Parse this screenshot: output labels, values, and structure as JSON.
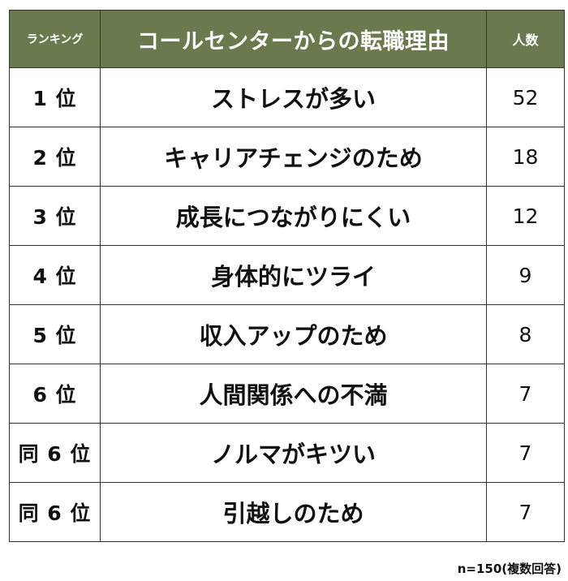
{
  "table": {
    "headers": {
      "rank": "ランキング",
      "reason": "コールセンターからの転職理由",
      "count": "人数"
    },
    "rows": [
      {
        "rank": "1 位",
        "reason": "ストレスが多い",
        "count": "52"
      },
      {
        "rank": "2 位",
        "reason": "キャリアチェンジのため",
        "count": "18"
      },
      {
        "rank": "3 位",
        "reason": "成長につながりにくい",
        "count": "12"
      },
      {
        "rank": "4 位",
        "reason": "身体的にツライ",
        "count": "9"
      },
      {
        "rank": "5 位",
        "reason": "収入アップのため",
        "count": "8"
      },
      {
        "rank": "6 位",
        "reason": "人間関係への不満",
        "count": "7"
      },
      {
        "rank": "同 6 位",
        "reason": "ノルマがキツい",
        "count": "7"
      },
      {
        "rank": "同 6 位",
        "reason": "引越しのため",
        "count": "7"
      }
    ]
  },
  "note": "n=150(複数回答)",
  "colors": {
    "header_bg": "#6b7a4e",
    "header_text": "#ffffff",
    "border": "#333333"
  }
}
